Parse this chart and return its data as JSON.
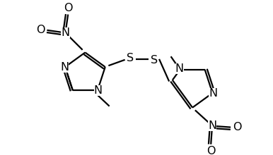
{
  "bg_color": "#ffffff",
  "bond_color": "#000000",
  "text_color": "#000000",
  "bond_lw": 1.6,
  "font_size": 11.5,
  "fig_width": 3.86,
  "fig_height": 2.2,
  "dpi": 100,
  "xlim": [
    0,
    386
  ],
  "ylim": [
    0,
    220
  ]
}
